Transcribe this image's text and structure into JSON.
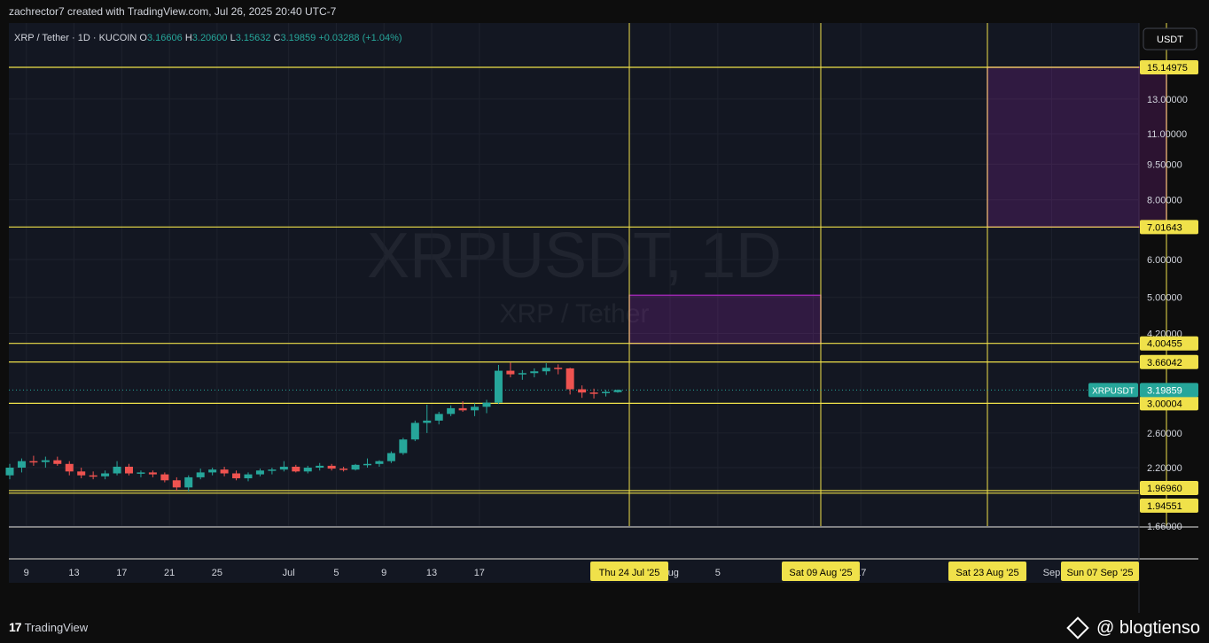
{
  "header": {
    "author_line": "zachrector7 created with TradingView.com, Jul 26, 2025 20:40 UTC-7"
  },
  "legend": {
    "symbol": "XRP / Tether · 1D · KUCOIN",
    "o_label": "O",
    "o_value": "3.16606",
    "h_label": "H",
    "h_value": "3.20600",
    "l_label": "L",
    "l_value": "3.15632",
    "c_label": "C",
    "c_value": "3.19859",
    "change": "+0.03288 (+1.04%)"
  },
  "watermark": {
    "line1": "XRPUSDT, 1D",
    "line2": "XRP / Tether"
  },
  "footer": {
    "brand": "TradingView",
    "credit": "@ blogtienso"
  },
  "colors": {
    "background": "#131722",
    "up": "#26a69a",
    "down": "#ef5350",
    "level_line": "#f0e14a",
    "zone": "#9c27b0",
    "tag_text": "#000000",
    "axis_text": "#d1d4dc",
    "price_tag": "#26a69a"
  },
  "chart_data": {
    "type": "candlestick",
    "title": "XRPUSDT, 1D",
    "currency": "USDT",
    "y_scale": "log",
    "y_ticks": [
      "13.00000",
      "11.00000",
      "9.50000",
      "8.00000",
      "6.00000",
      "5.00000",
      "4.20000",
      "2.60000",
      "2.20000",
      "1.66000"
    ],
    "x_ticks": [
      "9",
      "13",
      "17",
      "21",
      "25",
      "Jul",
      "5",
      "9",
      "13",
      "17",
      "Aug",
      "5",
      "13",
      "17",
      "Sep"
    ],
    "levels": [
      {
        "label": "15.14975"
      },
      {
        "label": "7.01643"
      },
      {
        "label": "4.00455"
      },
      {
        "label": "3.66042"
      },
      {
        "label": "3.00004"
      },
      {
        "label": "1.96960"
      },
      {
        "label": "1.94551"
      }
    ],
    "current_price": {
      "symbol": "XRPUSDT",
      "value": "3.19859"
    },
    "date_markers": [
      "Thu 24 Jul '25",
      "Sat 09 Aug '25",
      "Sat 23 Aug '25",
      "Sun 07 Sep '25"
    ],
    "zones": [
      {
        "from_date": "Thu 24 Jul '25",
        "to_date": "Sat 09 Aug '25",
        "low": 4.00455,
        "high": 5.05
      },
      {
        "from_date": "Sat 23 Aug '25",
        "to_date": "Sun 07 Sep '25",
        "low": 7.01643,
        "high": 15.14975
      }
    ],
    "candles": [
      {
        "o": 2.12,
        "h": 2.24,
        "l": 2.08,
        "c": 2.2
      },
      {
        "o": 2.2,
        "h": 2.3,
        "l": 2.15,
        "c": 2.27
      },
      {
        "o": 2.27,
        "h": 2.33,
        "l": 2.22,
        "c": 2.26
      },
      {
        "o": 2.26,
        "h": 2.32,
        "l": 2.2,
        "c": 2.28
      },
      {
        "o": 2.28,
        "h": 2.32,
        "l": 2.22,
        "c": 2.24
      },
      {
        "o": 2.24,
        "h": 2.27,
        "l": 2.12,
        "c": 2.16
      },
      {
        "o": 2.16,
        "h": 2.2,
        "l": 2.09,
        "c": 2.12
      },
      {
        "o": 2.12,
        "h": 2.16,
        "l": 2.08,
        "c": 2.11
      },
      {
        "o": 2.11,
        "h": 2.17,
        "l": 2.08,
        "c": 2.14
      },
      {
        "o": 2.14,
        "h": 2.27,
        "l": 2.12,
        "c": 2.21
      },
      {
        "o": 2.21,
        "h": 2.24,
        "l": 2.12,
        "c": 2.14
      },
      {
        "o": 2.14,
        "h": 2.17,
        "l": 2.1,
        "c": 2.15
      },
      {
        "o": 2.15,
        "h": 2.17,
        "l": 2.1,
        "c": 2.13
      },
      {
        "o": 2.13,
        "h": 2.15,
        "l": 2.05,
        "c": 2.07
      },
      {
        "o": 2.07,
        "h": 2.1,
        "l": 1.97,
        "c": 2.0
      },
      {
        "o": 2.0,
        "h": 2.12,
        "l": 1.96,
        "c": 2.1
      },
      {
        "o": 2.1,
        "h": 2.19,
        "l": 2.08,
        "c": 2.15
      },
      {
        "o": 2.15,
        "h": 2.2,
        "l": 2.12,
        "c": 2.18
      },
      {
        "o": 2.18,
        "h": 2.21,
        "l": 2.11,
        "c": 2.14
      },
      {
        "o": 2.14,
        "h": 2.17,
        "l": 2.07,
        "c": 2.09
      },
      {
        "o": 2.09,
        "h": 2.15,
        "l": 2.06,
        "c": 2.13
      },
      {
        "o": 2.13,
        "h": 2.19,
        "l": 2.11,
        "c": 2.17
      },
      {
        "o": 2.17,
        "h": 2.2,
        "l": 2.13,
        "c": 2.18
      },
      {
        "o": 2.18,
        "h": 2.27,
        "l": 2.16,
        "c": 2.21
      },
      {
        "o": 2.21,
        "h": 2.23,
        "l": 2.15,
        "c": 2.16
      },
      {
        "o": 2.16,
        "h": 2.22,
        "l": 2.14,
        "c": 2.2
      },
      {
        "o": 2.2,
        "h": 2.25,
        "l": 2.17,
        "c": 2.22
      },
      {
        "o": 2.22,
        "h": 2.24,
        "l": 2.17,
        "c": 2.19
      },
      {
        "o": 2.19,
        "h": 2.21,
        "l": 2.16,
        "c": 2.18
      },
      {
        "o": 2.18,
        "h": 2.24,
        "l": 2.17,
        "c": 2.23
      },
      {
        "o": 2.23,
        "h": 2.3,
        "l": 2.2,
        "c": 2.24
      },
      {
        "o": 2.24,
        "h": 2.28,
        "l": 2.21,
        "c": 2.27
      },
      {
        "o": 2.27,
        "h": 2.38,
        "l": 2.25,
        "c": 2.36
      },
      {
        "o": 2.36,
        "h": 2.54,
        "l": 2.34,
        "c": 2.52
      },
      {
        "o": 2.52,
        "h": 2.76,
        "l": 2.5,
        "c": 2.73
      },
      {
        "o": 2.73,
        "h": 2.98,
        "l": 2.6,
        "c": 2.76
      },
      {
        "o": 2.76,
        "h": 2.88,
        "l": 2.71,
        "c": 2.85
      },
      {
        "o": 2.85,
        "h": 2.97,
        "l": 2.82,
        "c": 2.93
      },
      {
        "o": 2.93,
        "h": 3.03,
        "l": 2.88,
        "c": 2.9
      },
      {
        "o": 2.9,
        "h": 3.0,
        "l": 2.82,
        "c": 2.95
      },
      {
        "o": 2.95,
        "h": 3.05,
        "l": 2.86,
        "c": 3.01
      },
      {
        "o": 3.01,
        "h": 3.61,
        "l": 2.99,
        "c": 3.51
      },
      {
        "o": 3.51,
        "h": 3.65,
        "l": 3.4,
        "c": 3.45
      },
      {
        "o": 3.45,
        "h": 3.52,
        "l": 3.36,
        "c": 3.47
      },
      {
        "o": 3.47,
        "h": 3.55,
        "l": 3.4,
        "c": 3.5
      },
      {
        "o": 3.5,
        "h": 3.64,
        "l": 3.44,
        "c": 3.56
      },
      {
        "o": 3.56,
        "h": 3.62,
        "l": 3.45,
        "c": 3.55
      },
      {
        "o": 3.55,
        "h": 3.56,
        "l": 3.13,
        "c": 3.21
      },
      {
        "o": 3.21,
        "h": 3.27,
        "l": 3.08,
        "c": 3.16
      },
      {
        "o": 3.16,
        "h": 3.22,
        "l": 3.07,
        "c": 3.15
      },
      {
        "o": 3.15,
        "h": 3.2,
        "l": 3.1,
        "c": 3.17
      },
      {
        "o": 3.16606,
        "h": 3.206,
        "l": 3.15632,
        "c": 3.19859
      }
    ]
  }
}
